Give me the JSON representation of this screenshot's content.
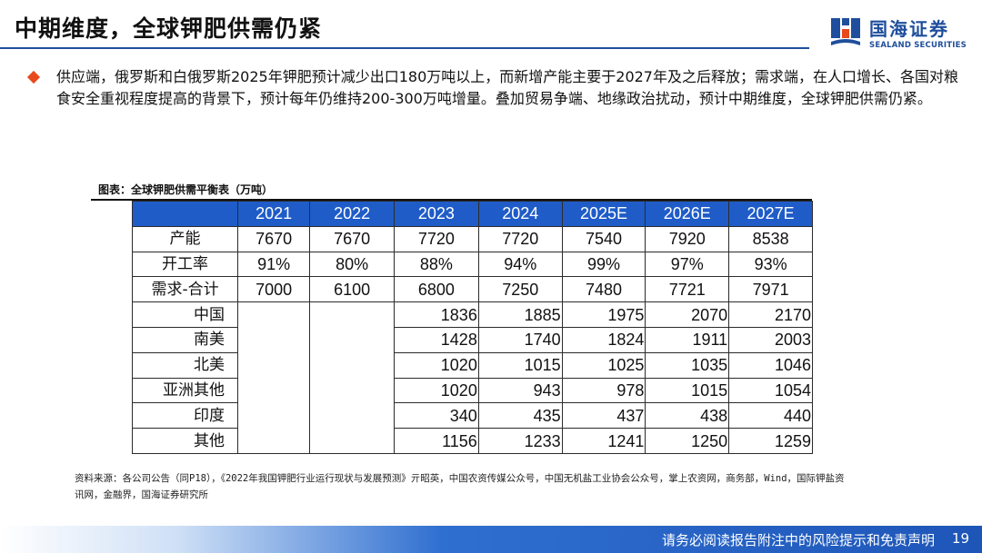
{
  "page": {
    "title": "中期维度，全球钾肥供需仍紧",
    "logo": {
      "cn": "国海证券",
      "en": "SEALAND SECURITIES"
    },
    "bullet_text": "供应端，俄罗斯和白俄罗斯2025年钾肥预计减少出口180万吨以上，而新增产能主要于2027年及之后释放；需求端，在人口增长、各国对粮食安全重视程度提高的背景下，预计每年仍维持200-300万吨增量。叠加贸易争端、地缘政治扰动，预计中期维度，全球钾肥供需仍紧。",
    "chart_caption": "图表：全球钾肥供需平衡表（万吨）",
    "source": "资料来源：各公司公告（同P18），《2022年我国钾肥行业运行现状与发展预测》亓昭英，中国农资传媒公众号，中国无机盐工业协会公众号，掌上农资网，商务部，Wind，国际钾盐资讯网，金融界，国海证券研究所",
    "footer": "请务必阅读报告附注中的风险提示和免责声明",
    "page_number": "19"
  },
  "colors": {
    "brand_blue": "#1f4e9c",
    "header_blue": "#1f5cc8",
    "bullet_orange": "#e8491d"
  },
  "table": {
    "headers": [
      "",
      "2021",
      "2022",
      "2023",
      "2024",
      "2025E",
      "2026E",
      "2027E"
    ],
    "rows": [
      {
        "label": "产能",
        "values": [
          "7670",
          "7670",
          "7720",
          "7720",
          "7540",
          "7920",
          "8538"
        ]
      },
      {
        "label": "开工率",
        "values": [
          "91%",
          "80%",
          "88%",
          "94%",
          "99%",
          "97%",
          "93%"
        ]
      },
      {
        "label": "需求-合计",
        "values": [
          "7000",
          "6100",
          "6800",
          "7250",
          "7480",
          "7721",
          "7971"
        ]
      },
      {
        "label": "中国",
        "values": [
          "",
          "",
          "1836",
          "1885",
          "1975",
          "2070",
          "2170"
        ]
      },
      {
        "label": "南美",
        "values": [
          "",
          "",
          "1428",
          "1740",
          "1824",
          "1911",
          "2003"
        ]
      },
      {
        "label": "北美",
        "values": [
          "",
          "",
          "1020",
          "1015",
          "1025",
          "1035",
          "1046"
        ]
      },
      {
        "label": "亚洲其他",
        "values": [
          "",
          "",
          "1020",
          "943",
          "978",
          "1015",
          "1054"
        ]
      },
      {
        "label": "印度",
        "values": [
          "",
          "",
          "340",
          "435",
          "437",
          "438",
          "440"
        ]
      },
      {
        "label": "其他",
        "values": [
          "",
          "",
          "1156",
          "1233",
          "1241",
          "1250",
          "1259"
        ]
      }
    ]
  }
}
